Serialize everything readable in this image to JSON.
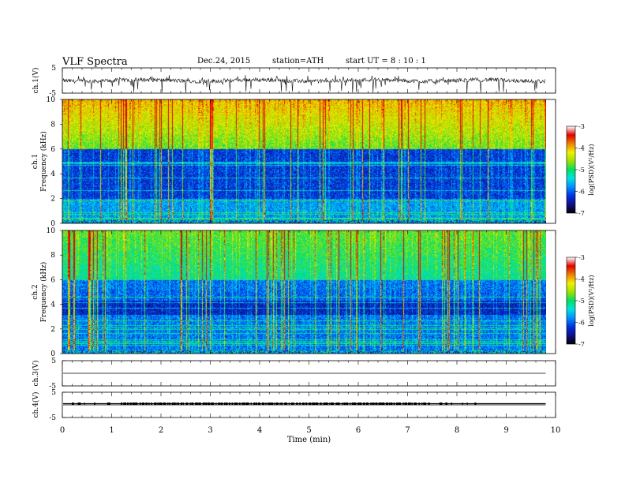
{
  "header": {
    "title": "VLF Spectra",
    "date": "Dec.24, 2015",
    "station": "station=ATH",
    "start_ut": "start UT = 8 : 10 : 1"
  },
  "chart_data": [
    {
      "type": "line",
      "panel": "ch1-waveform",
      "ylabel": "ch.1(V)",
      "ylim": [
        -5,
        5
      ],
      "yticks": [
        "5",
        "-5"
      ],
      "xlim": [
        0,
        10
      ],
      "x_end": 9.8,
      "baseline": 0,
      "description_values": "noisy voltage waveform near 0 V with spikes reaching about -5 V"
    },
    {
      "type": "heatmap",
      "panel": "ch1-spectrogram",
      "ylabel": "Frequency (kHz)",
      "channel_label": "ch.1",
      "ylim": [
        0,
        10
      ],
      "yticks": [
        "0",
        "2",
        "4",
        "6",
        "8",
        "10"
      ],
      "xlim": [
        0,
        10
      ],
      "x_end": 9.8,
      "colorbar": {
        "label": "log(PSD)(V²/Hz)",
        "range": [
          -7,
          -3
        ],
        "ticks": [
          "-3",
          "-4",
          "-5",
          "-6",
          "-7"
        ]
      }
    },
    {
      "type": "heatmap",
      "panel": "ch2-spectrogram",
      "ylabel": "Frequency (kHz)",
      "channel_label": "ch.2",
      "ylim": [
        0,
        10
      ],
      "yticks": [
        "0",
        "2",
        "4",
        "6",
        "8",
        "10"
      ],
      "xlim": [
        0,
        10
      ],
      "x_end": 9.8,
      "colorbar": {
        "label": "log(PSD)(V²/Hz)",
        "range": [
          -7,
          -3
        ],
        "ticks": [
          "-3",
          "-4",
          "-5",
          "-6",
          "-7"
        ]
      }
    },
    {
      "type": "line",
      "panel": "ch3-waveform",
      "ylabel": "ch.3(V)",
      "ylim": [
        -5,
        5
      ],
      "yticks": [
        "5",
        "-5"
      ],
      "xlim": [
        0,
        10
      ],
      "x_end": 9.8,
      "baseline": 0
    },
    {
      "type": "line",
      "panel": "ch4-waveform",
      "ylabel": "ch.4(V)",
      "ylim": [
        -5,
        5
      ],
      "yticks": [
        "5",
        "-5"
      ],
      "xlim": [
        0,
        10
      ],
      "x_end": 9.8,
      "baseline": 0
    }
  ],
  "x_axis": {
    "label": "Time (min)",
    "ticks": [
      "0",
      "1",
      "2",
      "3",
      "4",
      "5",
      "6",
      "7",
      "8",
      "9",
      "10"
    ]
  },
  "colors": {
    "colormap": [
      "#000000",
      "#101088",
      "#0030e0",
      "#0090ff",
      "#00e0e0",
      "#00e060",
      "#a0e000",
      "#f0f000",
      "#f08000",
      "#e00000",
      "#ffffff"
    ]
  }
}
